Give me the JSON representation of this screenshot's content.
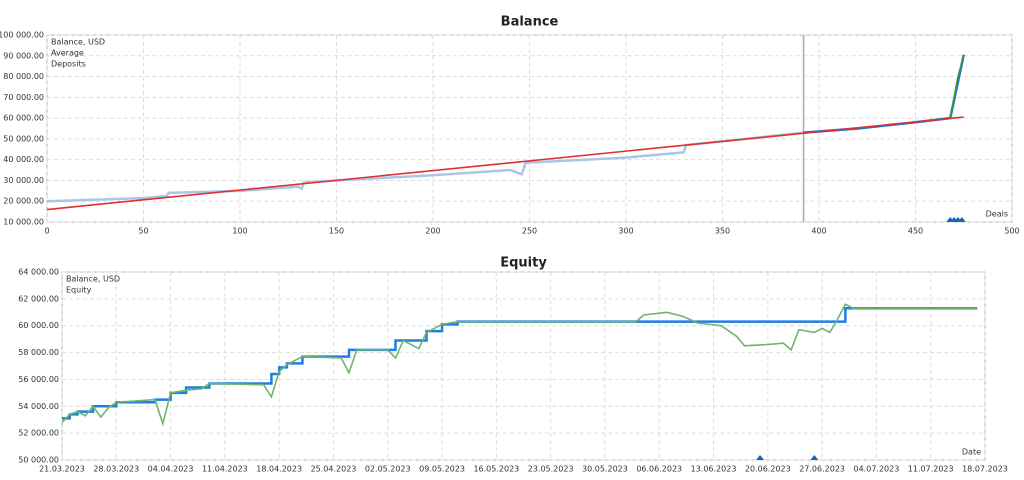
{
  "chart_data": [
    {
      "type": "line",
      "title": "Balance",
      "x_label": "Deals",
      "xlim": [
        0,
        500
      ],
      "xticks": [
        0,
        50,
        100,
        150,
        200,
        250,
        300,
        350,
        400,
        450,
        500
      ],
      "ylim": [
        10000,
        100000
      ],
      "yticks": [
        {
          "value": 10000,
          "label": "10 000.00"
        },
        {
          "value": 20000,
          "label": "20 000.00"
        },
        {
          "value": 30000,
          "label": "30 000.00"
        },
        {
          "value": 40000,
          "label": "40 000.00"
        },
        {
          "value": 50000,
          "label": "50 000.00"
        },
        {
          "value": 60000,
          "label": "60 000.00"
        },
        {
          "value": 70000,
          "label": "70 000.00"
        },
        {
          "value": 80000,
          "label": "80 000.00"
        },
        {
          "value": 90000,
          "label": "90 000.00"
        },
        {
          "value": 100000,
          "label": "100 000.00"
        }
      ],
      "grid": true,
      "legend": "top-left",
      "cursor_x": 392,
      "faded_color": "#aac6e6",
      "markers": [
        468,
        470,
        472,
        474
      ],
      "marker_color": "#1565c0",
      "series": [
        {
          "name": "Balance, USD",
          "color": "#1e6fd9",
          "step": false,
          "x": [
            0,
            50,
            62,
            63,
            100,
            130,
            132,
            133,
            150,
            200,
            240,
            246,
            248,
            300,
            330,
            331,
            392,
            420,
            450,
            468,
            475
          ],
          "values": [
            20000,
            21500,
            22500,
            24000,
            25000,
            27000,
            26000,
            29000,
            30000,
            32500,
            35000,
            33000,
            38500,
            41000,
            43500,
            47000,
            53000,
            55000,
            58000,
            60000,
            90500
          ]
        },
        {
          "name": "Average",
          "color": "#e03030",
          "step": false,
          "x": [
            0,
            475
          ],
          "values": [
            16000,
            60500
          ]
        },
        {
          "name": "Deposits",
          "color": "#3a9a3a",
          "step": false,
          "x": [
            468,
            470,
            472,
            475
          ],
          "values": [
            60000,
            70000,
            80000,
            90000
          ]
        }
      ]
    },
    {
      "type": "line",
      "title": "Equity",
      "x_label": "Date",
      "x_is_date": true,
      "xlim": [
        "2023-03-21",
        "2023-07-18"
      ],
      "xticks": [
        {
          "value": "2023-03-21",
          "label": "21.03.2023"
        },
        {
          "value": "2023-03-28",
          "label": "28.03.2023"
        },
        {
          "value": "2023-04-04",
          "label": "04.04.2023"
        },
        {
          "value": "2023-04-11",
          "label": "11.04.2023"
        },
        {
          "value": "2023-04-18",
          "label": "18.04.2023"
        },
        {
          "value": "2023-04-25",
          "label": "25.04.2023"
        },
        {
          "value": "2023-05-02",
          "label": "02.05.2023"
        },
        {
          "value": "2023-05-09",
          "label": "09.05.2023"
        },
        {
          "value": "2023-05-16",
          "label": "16.05.2023"
        },
        {
          "value": "2023-05-23",
          "label": "23.05.2023"
        },
        {
          "value": "2023-05-30",
          "label": "30.05.2023"
        },
        {
          "value": "2023-06-06",
          "label": "06.06.2023"
        },
        {
          "value": "2023-06-13",
          "label": "13.06.2023"
        },
        {
          "value": "2023-06-20",
          "label": "20.06.2023"
        },
        {
          "value": "2023-06-27",
          "label": "27.06.2023"
        },
        {
          "value": "2023-07-04",
          "label": "04.07.2023"
        },
        {
          "value": "2023-07-11",
          "label": "11.07.2023"
        },
        {
          "value": "2023-07-18",
          "label": "18.07.2023"
        }
      ],
      "ylim": [
        50000,
        64000
      ],
      "yticks": [
        {
          "value": 50000,
          "label": "50 000.00"
        },
        {
          "value": 52000,
          "label": "52 000.00"
        },
        {
          "value": 54000,
          "label": "54 000.00"
        },
        {
          "value": 56000,
          "label": "56 000.00"
        },
        {
          "value": 58000,
          "label": "58 000.00"
        },
        {
          "value": 60000,
          "label": "60 000.00"
        },
        {
          "value": 62000,
          "label": "62 000.00"
        },
        {
          "value": 64000,
          "label": "64 000.00"
        }
      ],
      "grid": true,
      "legend": "top-left",
      "markers": [
        "2023-06-19",
        "2023-06-26"
      ],
      "marker_color": "#1565c0",
      "series": [
        {
          "name": "Balance, USD",
          "color": "#1e7ee4",
          "step": true,
          "x": [
            "2023-03-21",
            "2023-03-22",
            "2023-03-23",
            "2023-03-25",
            "2023-03-28",
            "2023-04-02",
            "2023-04-04",
            "2023-04-06",
            "2023-04-09",
            "2023-04-17",
            "2023-04-18",
            "2023-04-19",
            "2023-04-21",
            "2023-04-27",
            "2023-05-03",
            "2023-05-07",
            "2023-05-09",
            "2023-05-11",
            "2023-06-30",
            "2023-07-17"
          ],
          "values": [
            53100,
            53400,
            53600,
            54000,
            54300,
            54500,
            55000,
            55400,
            55700,
            56400,
            56900,
            57200,
            57700,
            58200,
            58900,
            59600,
            60100,
            60300,
            61300,
            61300
          ]
        },
        {
          "name": "Equity",
          "color": "#6db56a",
          "step": false,
          "x": [
            "2023-03-21",
            "2023-03-22",
            "2023-03-23",
            "2023-03-24",
            "2023-03-25",
            "2023-03-26",
            "2023-03-27",
            "2023-03-28",
            "2023-04-02",
            "2023-04-03",
            "2023-04-04",
            "2023-04-06",
            "2023-04-08",
            "2023-04-09",
            "2023-04-16",
            "2023-04-17",
            "2023-04-18",
            "2023-04-19",
            "2023-04-21",
            "2023-04-26",
            "2023-04-27",
            "2023-04-28",
            "2023-05-02",
            "2023-05-03",
            "2023-05-04",
            "2023-05-06",
            "2023-05-07",
            "2023-05-09",
            "2023-05-11",
            "2023-06-03",
            "2023-06-04",
            "2023-06-07",
            "2023-06-09",
            "2023-06-11",
            "2023-06-14",
            "2023-06-15",
            "2023-06-16",
            "2023-06-17",
            "2023-06-20",
            "2023-06-22",
            "2023-06-23",
            "2023-06-24",
            "2023-06-26",
            "2023-06-27",
            "2023-06-28",
            "2023-06-29",
            "2023-06-30",
            "2023-07-01",
            "2023-07-17"
          ],
          "values": [
            52800,
            53400,
            53600,
            53300,
            54000,
            53200,
            53900,
            54300,
            54500,
            52700,
            55000,
            55200,
            55300,
            55700,
            55600,
            54700,
            56600,
            57100,
            57700,
            57600,
            56500,
            58200,
            58200,
            57600,
            58900,
            58300,
            59500,
            60100,
            60300,
            60300,
            60800,
            61000,
            60700,
            60200,
            60000,
            59600,
            59200,
            58500,
            58600,
            58700,
            58200,
            59700,
            59500,
            59800,
            59500,
            60500,
            61600,
            61300,
            61300
          ]
        }
      ]
    }
  ]
}
